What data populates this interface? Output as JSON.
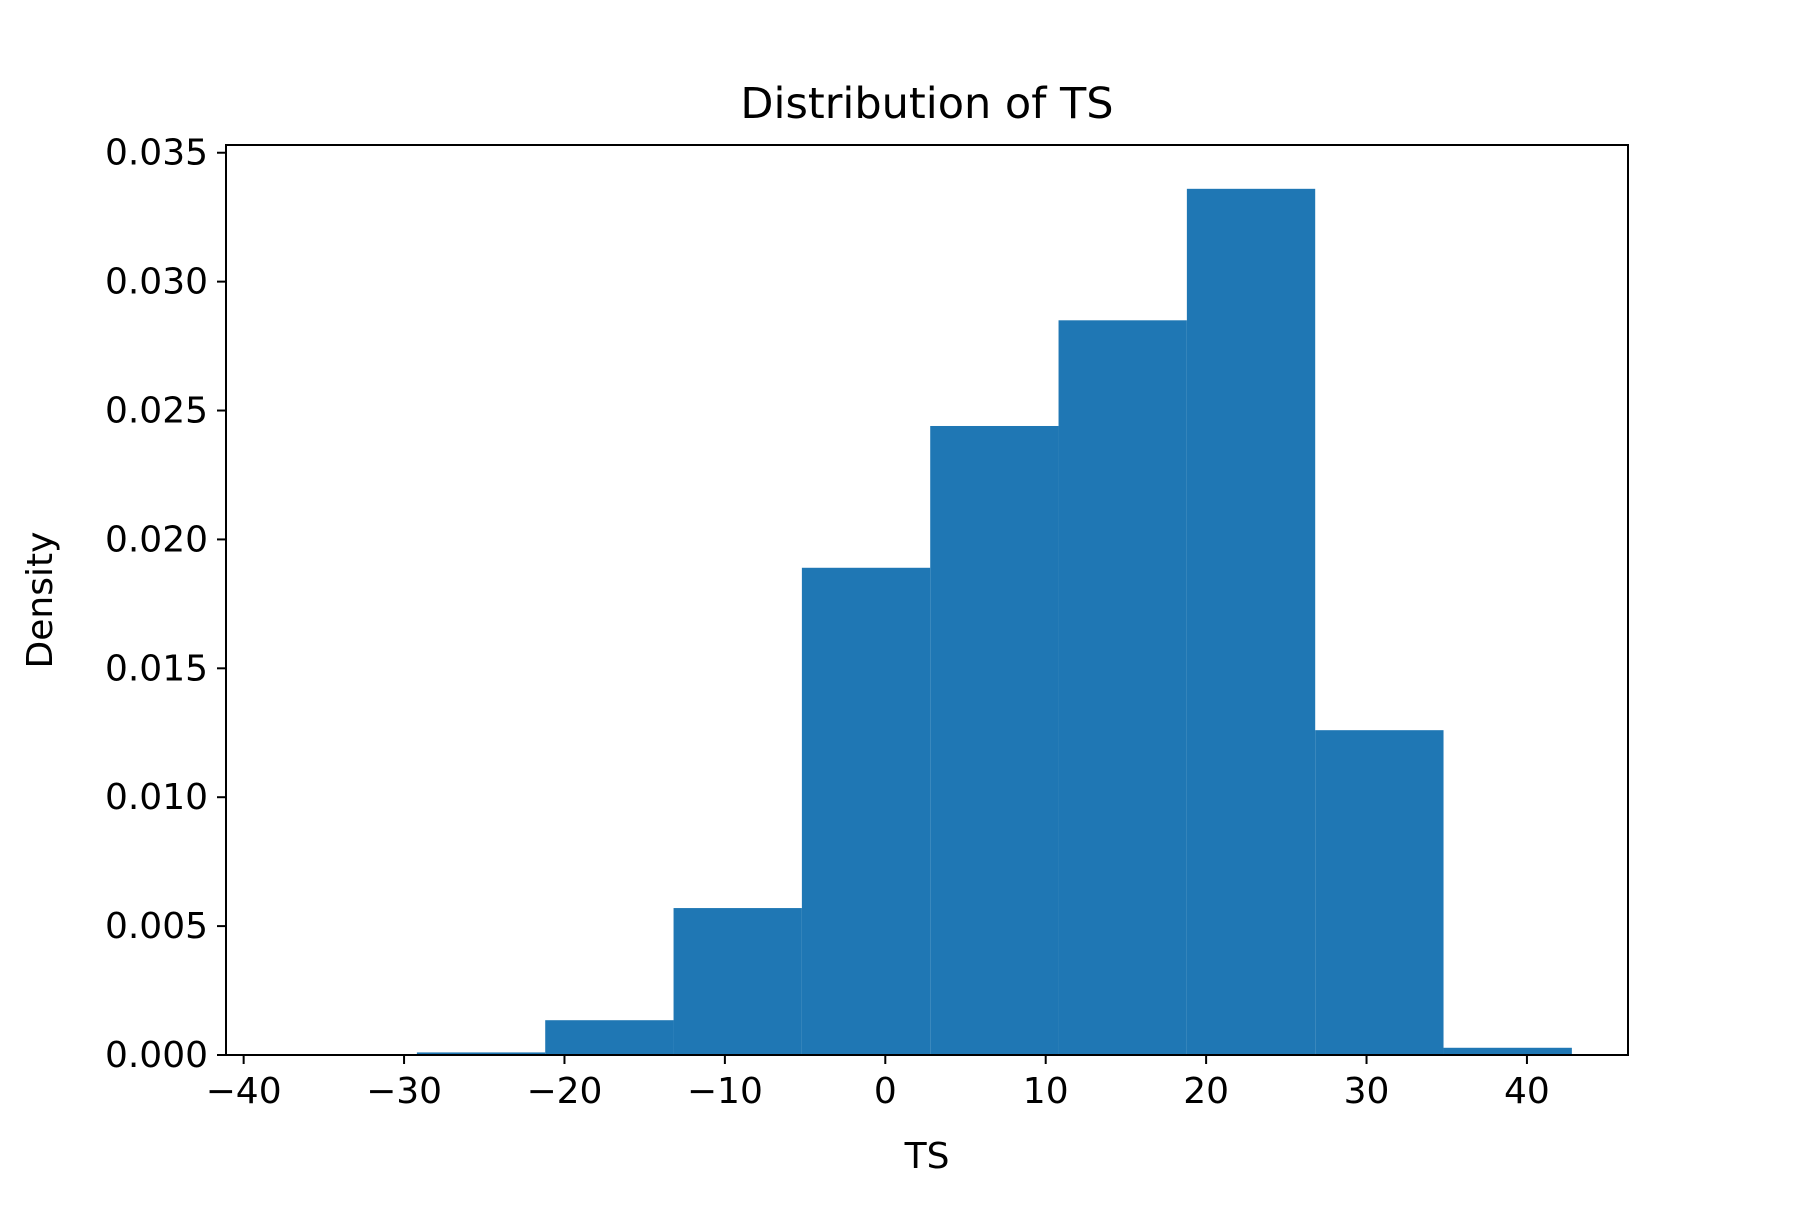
{
  "chart_data": {
    "type": "bar",
    "subtype": "histogram",
    "title": "Distribution of TS",
    "xlabel": "TS",
    "ylabel": "Density",
    "xlim": [
      -41.1,
      46.3
    ],
    "ylim": [
      0,
      0.0353
    ],
    "x_ticks": [
      -40,
      -30,
      -20,
      -10,
      0,
      10,
      20,
      30,
      40
    ],
    "x_tick_labels": [
      "−40",
      "−30",
      "−20",
      "−10",
      "0",
      "10",
      "20",
      "30",
      "40"
    ],
    "y_ticks": [
      0,
      0.005,
      0.01,
      0.015,
      0.02,
      0.025,
      0.03,
      0.035
    ],
    "y_tick_labels": [
      "0.000",
      "0.005",
      "0.010",
      "0.015",
      "0.020",
      "0.025",
      "0.030",
      "0.035"
    ],
    "bins": [
      {
        "x0": -37.2,
        "x1": -29.2,
        "value": 0.0
      },
      {
        "x0": -29.2,
        "x1": -21.2,
        "value": 0.0001
      },
      {
        "x0": -21.2,
        "x1": -13.2,
        "value": 0.00135
      },
      {
        "x0": -13.2,
        "x1": -5.2,
        "value": 0.0057
      },
      {
        "x0": -5.2,
        "x1": 2.8,
        "value": 0.0189
      },
      {
        "x0": 2.8,
        "x1": 10.8,
        "value": 0.0244
      },
      {
        "x0": 10.8,
        "x1": 18.8,
        "value": 0.0285
      },
      {
        "x0": 18.8,
        "x1": 26.8,
        "value": 0.0336
      },
      {
        "x0": 26.8,
        "x1": 34.8,
        "value": 0.0126
      },
      {
        "x0": 34.8,
        "x1": 42.8,
        "value": 0.00028
      }
    ],
    "bar_color": "#1f77b4",
    "grid": false,
    "legend": "none"
  }
}
